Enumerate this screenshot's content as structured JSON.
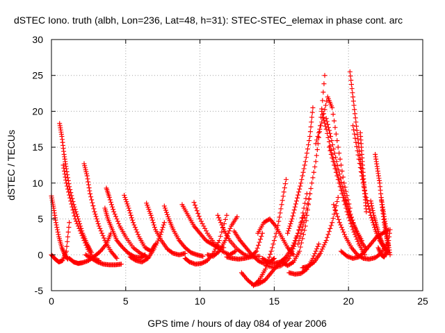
{
  "chart_data": {
    "type": "scatter",
    "title": "dSTEC Iono. truth (albh, Lon=236, Lat=48, h=31): STEC-STEC_elemax in phase cont. arc",
    "xlabel": "GPS time / hours of day 084 of year 2006",
    "ylabel": "dSTEC  / TECUs",
    "xlim": [
      0,
      25
    ],
    "ylim": [
      -5,
      30
    ],
    "xticks": [
      0,
      5,
      10,
      15,
      20,
      25
    ],
    "yticks": [
      -5,
      0,
      5,
      10,
      15,
      20,
      25,
      30
    ],
    "grid": true,
    "marker": "+",
    "color": "#ff0000",
    "series": [
      {
        "x": [
          0.0,
          0.15,
          0.3,
          0.5,
          0.7,
          0.9,
          1.1
        ],
        "y": [
          8.2,
          6.5,
          4.5,
          2.5,
          1.0,
          0.0,
          -0.6
        ]
      },
      {
        "x": [
          0.0,
          0.25,
          0.5,
          0.75,
          1.0,
          1.2
        ],
        "y": [
          0.0,
          -0.6,
          -1.0,
          -0.8,
          0.5,
          4.5
        ]
      },
      {
        "x": [
          0.55,
          0.7,
          0.85,
          1.0,
          1.2,
          1.5,
          1.8,
          2.1,
          2.4,
          2.7
        ],
        "y": [
          18.3,
          16.5,
          14.0,
          12.0,
          9.5,
          7.0,
          5.0,
          3.0,
          1.5,
          0.3
        ]
      },
      {
        "x": [
          0.8,
          1.0,
          1.3,
          1.6,
          2.0,
          2.4,
          2.8,
          3.2
        ],
        "y": [
          12.5,
          10.0,
          7.5,
          5.0,
          3.0,
          1.0,
          -0.5,
          -0.8
        ]
      },
      {
        "x": [
          1.2,
          1.5,
          1.8,
          2.1,
          2.5,
          2.9,
          3.3,
          3.7,
          4.0
        ],
        "y": [
          -0.5,
          -1.0,
          -1.2,
          -1.1,
          -0.8,
          -0.2,
          0.5,
          1.5,
          3.0
        ]
      },
      {
        "x": [
          2.2,
          2.4,
          2.6,
          2.9,
          3.2,
          3.6,
          4.0,
          4.4
        ],
        "y": [
          12.7,
          11.0,
          8.5,
          6.0,
          4.0,
          2.0,
          0.5,
          -0.5
        ]
      },
      {
        "x": [
          2.3,
          2.7,
          3.1,
          3.5,
          3.9,
          4.3,
          4.7
        ],
        "y": [
          0.0,
          -0.5,
          -1.0,
          -1.3,
          -1.4,
          -1.4,
          -1.3
        ]
      },
      {
        "x": [
          3.6,
          3.8,
          4.1,
          4.4,
          4.8,
          5.2,
          5.6,
          6.0,
          6.3
        ],
        "y": [
          6.5,
          5.0,
          3.5,
          2.0,
          1.0,
          0.2,
          -0.3,
          -0.4,
          0.0
        ]
      },
      {
        "x": [
          3.7,
          3.9,
          4.2,
          4.6,
          5.0,
          5.5,
          6.0,
          6.5
        ],
        "y": [
          9.3,
          8.0,
          6.0,
          4.0,
          2.5,
          1.0,
          0.2,
          -0.4
        ]
      },
      {
        "x": [
          4.9,
          5.2,
          5.5,
          5.9,
          6.3,
          6.7,
          7.0
        ],
        "y": [
          8.3,
          6.5,
          4.5,
          2.5,
          1.0,
          0.5,
          1.5
        ]
      },
      {
        "x": [
          5.3,
          5.7,
          6.1,
          6.5,
          6.9,
          7.3,
          7.6
        ],
        "y": [
          -0.3,
          -0.8,
          -1.0,
          -0.5,
          0.8,
          2.5,
          4.5
        ]
      },
      {
        "x": [
          6.4,
          6.7,
          7.0,
          7.4,
          7.8,
          8.2,
          8.6,
          9.0
        ],
        "y": [
          7.2,
          5.5,
          3.5,
          2.0,
          0.8,
          0.2,
          0.0,
          0.2
        ]
      },
      {
        "x": [
          7.6,
          7.9,
          8.2,
          8.6,
          9.0,
          9.4,
          9.8,
          10.2
        ],
        "y": [
          6.8,
          5.0,
          3.5,
          2.0,
          1.0,
          0.3,
          0.0,
          -0.2
        ]
      },
      {
        "x": [
          8.8,
          9.2,
          9.6,
          10.0,
          10.4,
          10.8,
          11.2,
          11.6
        ],
        "y": [
          7.0,
          5.5,
          4.0,
          3.0,
          2.0,
          1.5,
          1.0,
          1.0
        ]
      },
      {
        "x": [
          9.0,
          9.3,
          9.7,
          10.1,
          10.5,
          10.9,
          11.3,
          11.8
        ],
        "y": [
          -0.5,
          -1.0,
          -1.3,
          -1.2,
          -0.8,
          0.2,
          2.0,
          5.5
        ]
      },
      {
        "x": [
          9.6,
          10.0,
          10.5,
          11.0,
          11.5,
          12.0,
          12.4
        ],
        "y": [
          7.3,
          5.0,
          3.0,
          1.5,
          0.5,
          0.0,
          0.5
        ]
      },
      {
        "x": [
          10.5,
          10.9,
          11.3,
          11.7,
          12.1,
          12.5
        ],
        "y": [
          0.0,
          -0.2,
          0.5,
          2.0,
          4.0,
          5.3
        ]
      },
      {
        "x": [
          11.2,
          11.6,
          12.0,
          12.5,
          13.0,
          13.5,
          14.0
        ],
        "y": [
          5.5,
          3.5,
          2.0,
          0.8,
          0.0,
          -0.3,
          -0.2
        ]
      },
      {
        "x": [
          11.8,
          12.2,
          12.6,
          13.0,
          13.4,
          13.8,
          14.2
        ],
        "y": [
          -0.3,
          -0.5,
          -0.6,
          -0.5,
          -0.3,
          0.5,
          3.0
        ]
      },
      {
        "x": [
          12.3,
          12.7,
          13.1,
          13.5,
          13.9,
          14.3,
          14.7,
          15.0
        ],
        "y": [
          3.3,
          2.0,
          1.0,
          0.0,
          -0.8,
          -1.2,
          -1.0,
          -0.5
        ]
      },
      {
        "x": [
          12.8,
          13.2,
          13.6,
          14.0,
          14.4,
          14.8,
          15.2,
          15.6
        ],
        "y": [
          -2.5,
          -3.5,
          -4.2,
          -4.0,
          -3.5,
          -2.5,
          -1.5,
          -0.8
        ]
      },
      {
        "x": [
          13.6,
          14.0,
          14.4,
          14.8,
          15.2,
          15.5,
          15.8
        ],
        "y": [
          -4.3,
          -3.5,
          -2.0,
          0.5,
          3.5,
          7.0,
          10.5
        ]
      },
      {
        "x": [
          13.9,
          14.3,
          14.7,
          15.1,
          15.5,
          15.9,
          16.3
        ],
        "y": [
          3.0,
          4.5,
          5.0,
          4.0,
          2.5,
          1.0,
          0.0
        ]
      },
      {
        "x": [
          14.2,
          14.6,
          15.0,
          15.4,
          15.8,
          16.2,
          16.6,
          17.0
        ],
        "y": [
          -0.5,
          -1.0,
          -1.2,
          -1.0,
          -0.3,
          1.0,
          3.0,
          5.5
        ]
      },
      {
        "x": [
          14.5,
          15.0,
          15.5,
          16.0,
          16.4,
          16.8,
          17.2
        ],
        "y": [
          -1.5,
          -1.8,
          -1.5,
          -0.5,
          1.5,
          4.5,
          8.5
        ]
      },
      {
        "x": [
          15.5,
          15.9,
          16.3,
          16.7,
          17.1,
          17.4
        ],
        "y": [
          -1.0,
          -1.5,
          -1.0,
          0.5,
          4.0,
          8.5
        ]
      },
      {
        "x": [
          15.9,
          16.2,
          16.5,
          16.8,
          17.1,
          17.4,
          17.6
        ],
        "y": [
          3.0,
          5.0,
          7.5,
          10.0,
          13.0,
          16.5,
          20.5
        ]
      },
      {
        "x": [
          16.0,
          16.4,
          16.8,
          17.2,
          17.6,
          18.0
        ],
        "y": [
          -2.5,
          -2.7,
          -2.6,
          -2.0,
          -0.5,
          1.5
        ]
      },
      {
        "x": [
          16.6,
          17.0,
          17.4,
          17.8,
          18.1,
          18.4
        ],
        "y": [
          1.5,
          4.5,
          8.5,
          13.0,
          18.0,
          25.0
        ]
      },
      {
        "x": [
          16.9,
          17.3,
          17.7,
          18.1,
          18.5,
          18.9,
          19.3
        ],
        "y": [
          -1.8,
          -1.6,
          -1.0,
          0.2,
          2.0,
          4.5,
          8.0
        ]
      },
      {
        "x": [
          17.8,
          18.2,
          18.6,
          18.9,
          19.3,
          19.7,
          20.1
        ],
        "y": [
          15.5,
          18.5,
          22.0,
          20.5,
          15.0,
          10.0,
          6.5
        ]
      },
      {
        "x": [
          18.2,
          18.5,
          18.9,
          19.3,
          19.7,
          20.1,
          20.5,
          20.9
        ],
        "y": [
          20.0,
          17.5,
          14.0,
          11.0,
          8.0,
          5.5,
          3.5,
          2.0
        ]
      },
      {
        "x": [
          18.5,
          18.8,
          19.2,
          19.6,
          20.0,
          20.4,
          20.8,
          21.2
        ],
        "y": [
          19.0,
          16.5,
          13.0,
          9.5,
          6.5,
          4.0,
          2.0,
          0.8
        ]
      },
      {
        "x": [
          18.7,
          19.1,
          19.5,
          19.9,
          20.3,
          20.7,
          21.1
        ],
        "y": [
          15.0,
          12.0,
          9.0,
          6.0,
          3.5,
          1.5,
          0.0
        ]
      },
      {
        "x": [
          19.0,
          19.4,
          19.8,
          20.2,
          20.6,
          21.0,
          21.4,
          21.8,
          22.2,
          22.6
        ],
        "y": [
          7.0,
          4.5,
          2.5,
          1.0,
          0.0,
          -0.5,
          -0.6,
          -0.4,
          0.2,
          1.5
        ]
      },
      {
        "x": [
          19.5,
          19.9,
          20.3,
          20.7,
          21.1,
          21.5,
          21.9,
          22.3,
          22.7
        ],
        "y": [
          0.5,
          -0.2,
          -0.5,
          -0.3,
          0.5,
          1.5,
          2.5,
          3.0,
          3.5
        ]
      },
      {
        "x": [
          20.1,
          20.3,
          20.5,
          20.7,
          20.9,
          21.1
        ],
        "y": [
          25.5,
          22.0,
          18.5,
          15.0,
          11.5,
          8.5
        ]
      },
      {
        "x": [
          20.3,
          20.6,
          20.9,
          21.2,
          21.5,
          21.8,
          22.1,
          22.4,
          22.7
        ],
        "y": [
          18.0,
          14.5,
          11.0,
          8.0,
          5.5,
          3.5,
          2.0,
          1.0,
          0.3
        ]
      },
      {
        "x": [
          20.8,
          20.9,
          21.0,
          21.1,
          21.2
        ],
        "y": [
          17.0,
          14.0,
          11.0,
          8.5,
          6.0
        ]
      },
      {
        "x": [
          21.5,
          21.7,
          21.9,
          22.1,
          22.3,
          22.5,
          22.7
        ],
        "y": [
          7.5,
          5.5,
          4.0,
          2.5,
          1.5,
          0.8,
          0.3
        ]
      },
      {
        "x": [
          21.8,
          21.95,
          22.1,
          22.25,
          22.4,
          22.55,
          22.7
        ],
        "y": [
          14.0,
          12.0,
          10.0,
          7.0,
          4.5,
          2.5,
          1.0
        ]
      },
      {
        "x": [
          22.0,
          22.2,
          22.4,
          22.6,
          22.8
        ],
        "y": [
          1.0,
          0.0,
          -0.3,
          0.5,
          3.5
        ]
      },
      {
        "x": [
          22.2,
          22.35,
          22.5,
          22.65,
          22.8
        ],
        "y": [
          8.0,
          6.0,
          4.0,
          2.0,
          0.0
        ]
      }
    ]
  }
}
